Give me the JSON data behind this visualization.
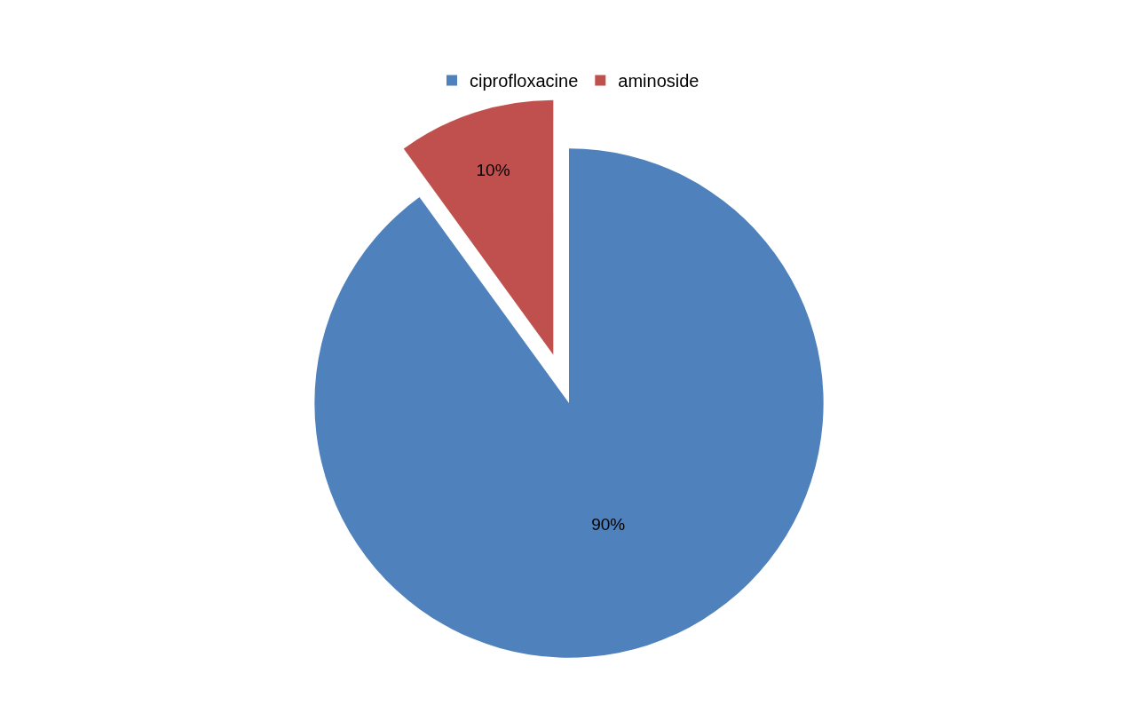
{
  "chart_data": {
    "type": "pie",
    "categories": [
      "ciprofloxacine",
      "aminoside"
    ],
    "values": [
      90,
      10
    ],
    "colors": [
      "#4f81bd",
      "#c0504d"
    ],
    "value_labels": [
      "90%",
      "10%"
    ],
    "legend": "top"
  }
}
